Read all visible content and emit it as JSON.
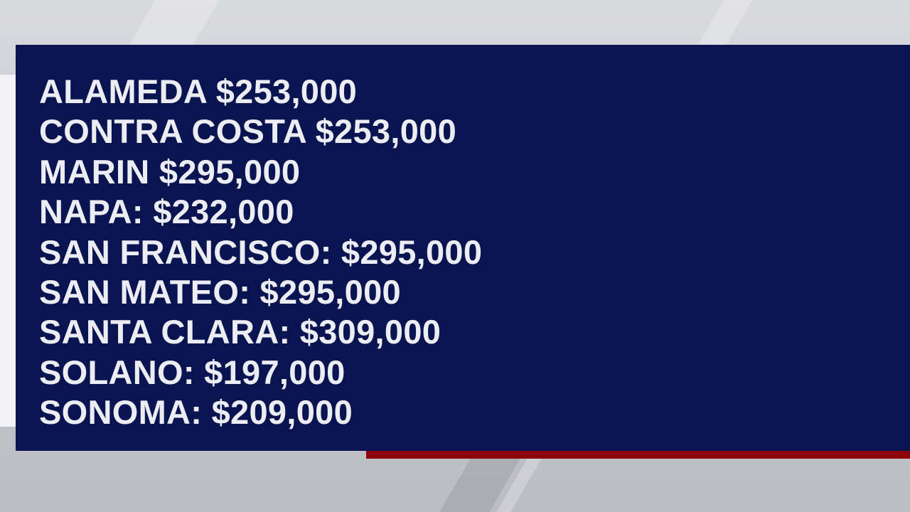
{
  "graphic": {
    "colors": {
      "panel": "#0a1450",
      "text": "#ecedf3",
      "accent_bar": "#8c0208"
    },
    "items": [
      {
        "text": "ALAMEDA $253,000"
      },
      {
        "text": "CONTRA COSTA $253,000"
      },
      {
        "text": "MARIN $295,000"
      },
      {
        "text": "NAPA: $232,000"
      },
      {
        "text": "SAN FRANCISCO: $295,000"
      },
      {
        "text": "SAN MATEO: $295,000"
      },
      {
        "text": "SANTA CLARA: $309,000"
      },
      {
        "text": "SOLANO: $197,000"
      },
      {
        "text": "SONOMA: $209,000"
      }
    ]
  }
}
